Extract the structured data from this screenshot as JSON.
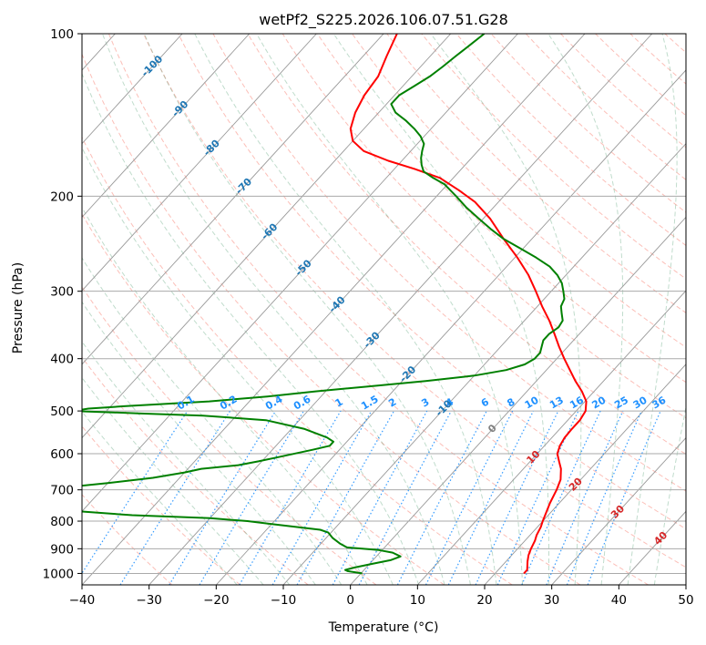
{
  "chart_data": {
    "type": "line",
    "subtype": "skew-t log-p",
    "title": "wetPf2_S225.2026.106.07.51.G28",
    "xlabel": "Temperature (°C)",
    "ylabel": "Pressure (hPa)",
    "xlim": [
      -40,
      50
    ],
    "ylim": [
      1050,
      100
    ],
    "y_scale": "log",
    "grid": true,
    "x_ticks": [
      -40,
      -30,
      -20,
      -10,
      0,
      10,
      20,
      30,
      40,
      50
    ],
    "y_ticks": [
      1000,
      900,
      800,
      700,
      600,
      500,
      400,
      300,
      200,
      100
    ],
    "x_tick_labels": [
      "−40",
      "−30",
      "−20",
      "−10",
      "0",
      "10",
      "20",
      "30",
      "40",
      "50"
    ],
    "y_tick_labels": [
      "1000",
      "900",
      "800",
      "700",
      "600",
      "500",
      "400",
      "300",
      "200",
      "100"
    ],
    "series": [
      {
        "role": "temperature",
        "color": "#ff0000",
        "points": [
          [
            1000,
            24.3
          ],
          [
            985,
            24.3
          ],
          [
            950,
            23.2
          ],
          [
            925,
            22.5
          ],
          [
            900,
            22.0
          ],
          [
            870,
            21.5
          ],
          [
            850,
            21.0
          ],
          [
            820,
            20.5
          ],
          [
            800,
            20.0
          ],
          [
            770,
            19.3
          ],
          [
            740,
            18.6
          ],
          [
            700,
            17.8
          ],
          [
            670,
            17.0
          ],
          [
            640,
            15.6
          ],
          [
            620,
            14.3
          ],
          [
            600,
            13.0
          ],
          [
            580,
            12.3
          ],
          [
            560,
            11.9
          ],
          [
            540,
            11.8
          ],
          [
            520,
            11.8
          ],
          [
            500,
            11.4
          ],
          [
            480,
            10.2
          ],
          [
            460,
            8.2
          ],
          [
            440,
            5.8
          ],
          [
            420,
            3.5
          ],
          [
            400,
            1.1
          ],
          [
            380,
            -1.3
          ],
          [
            360,
            -3.7
          ],
          [
            340,
            -6.3
          ],
          [
            320,
            -9.3
          ],
          [
            300,
            -12.3
          ],
          [
            280,
            -15.6
          ],
          [
            260,
            -19.6
          ],
          [
            240,
            -24.2
          ],
          [
            220,
            -29.0
          ],
          [
            205,
            -33.5
          ],
          [
            195,
            -37.5
          ],
          [
            185,
            -42.0
          ],
          [
            178,
            -47.0
          ],
          [
            172,
            -52.0
          ],
          [
            165,
            -57.0
          ],
          [
            158,
            -60.0
          ],
          [
            150,
            -62.0
          ],
          [
            140,
            -63.5
          ],
          [
            130,
            -64.5
          ],
          [
            120,
            -65.0
          ],
          [
            110,
            -66.5
          ],
          [
            100,
            -68.0
          ]
        ]
      },
      {
        "role": "dewpoint",
        "color": "#008000",
        "points": [
          [
            1000,
            0.2
          ],
          [
            990,
            -2.3
          ],
          [
            985,
            -2.8
          ],
          [
            975,
            -1.7
          ],
          [
            960,
            0.4
          ],
          [
            945,
            2.6
          ],
          [
            930,
            3.6
          ],
          [
            915,
            1.9
          ],
          [
            905,
            -0.5
          ],
          [
            895,
            -5.6
          ],
          [
            880,
            -7.2
          ],
          [
            860,
            -9.0
          ],
          [
            840,
            -10.4
          ],
          [
            830,
            -12.0
          ],
          [
            810,
            -20.0
          ],
          [
            800,
            -24.0
          ],
          [
            790,
            -30.0
          ],
          [
            780,
            -42.0
          ],
          [
            765,
            -52.0
          ],
          [
            750,
            -58.0
          ],
          [
            720,
            -60.5
          ],
          [
            710,
            -59.5
          ],
          [
            700,
            -57.0
          ],
          [
            690,
            -54.5
          ],
          [
            680,
            -50.0
          ],
          [
            665,
            -44.0
          ],
          [
            650,
            -40.0
          ],
          [
            640,
            -38.0
          ],
          [
            630,
            -33.0
          ],
          [
            620,
            -30.5
          ],
          [
            610,
            -28.4
          ],
          [
            590,
            -24.0
          ],
          [
            580,
            -22.0
          ],
          [
            570,
            -22.0
          ],
          [
            560,
            -23.5
          ],
          [
            540,
            -28.0
          ],
          [
            520,
            -35.0
          ],
          [
            510,
            -45.0
          ],
          [
            505,
            -55.0
          ],
          [
            500,
            -65.0
          ],
          [
            495,
            -63.0
          ],
          [
            490,
            -58.0
          ],
          [
            485,
            -52.0
          ],
          [
            480,
            -46.0
          ],
          [
            470,
            -38.0
          ],
          [
            460,
            -31.5
          ],
          [
            450,
            -24.0
          ],
          [
            440,
            -16.5
          ],
          [
            430,
            -10.0
          ],
          [
            420,
            -6.0
          ],
          [
            410,
            -4.0
          ],
          [
            400,
            -3.3
          ],
          [
            390,
            -3.3
          ],
          [
            380,
            -3.9
          ],
          [
            370,
            -4.5
          ],
          [
            360,
            -4.5
          ],
          [
            350,
            -4.0
          ],
          [
            340,
            -4.3
          ],
          [
            330,
            -5.4
          ],
          [
            320,
            -6.5
          ],
          [
            310,
            -7.0
          ],
          [
            300,
            -8.2
          ],
          [
            290,
            -9.5
          ],
          [
            280,
            -11.3
          ],
          [
            270,
            -13.6
          ],
          [
            260,
            -16.8
          ],
          [
            250,
            -20.4
          ],
          [
            240,
            -24.2
          ],
          [
            230,
            -27.5
          ],
          [
            220,
            -30.7
          ],
          [
            210,
            -34.0
          ],
          [
            200,
            -37.1
          ],
          [
            190,
            -40.5
          ],
          [
            185,
            -43.0
          ],
          [
            180,
            -45.3
          ],
          [
            175,
            -46.5
          ],
          [
            170,
            -47.5
          ],
          [
            165,
            -48.3
          ],
          [
            160,
            -49.0
          ],
          [
            155,
            -50.5
          ],
          [
            150,
            -52.5
          ],
          [
            145,
            -54.8
          ],
          [
            140,
            -57.5
          ],
          [
            135,
            -59.3
          ],
          [
            130,
            -59.3
          ],
          [
            125,
            -58.3
          ],
          [
            120,
            -57.3
          ],
          [
            115,
            -56.7
          ],
          [
            110,
            -56.2
          ],
          [
            105,
            -55.6
          ],
          [
            100,
            -55.0
          ]
        ]
      }
    ],
    "reference_lines": {
      "dry_adiabats": {
        "color": "#fa8072",
        "style": "dashed"
      },
      "moist_adiabats": {
        "color": "#2e8b57",
        "style": "dashed"
      },
      "mixing_ratio": {
        "color": "#1e90ff",
        "style": "dotted",
        "labels": [
          "0.1",
          "0.2",
          "0.4",
          "0.6",
          "1",
          "1.5",
          "2",
          "3",
          "4",
          "6",
          "8",
          "10",
          "13",
          "16",
          "20",
          "25",
          "30",
          "36"
        ],
        "values": [
          0.1,
          0.2,
          0.4,
          0.6,
          1,
          1.5,
          2,
          3,
          4,
          6,
          8,
          10,
          13,
          16,
          20,
          25,
          30,
          36
        ]
      },
      "isotherm_labels": {
        "color": "#1f77b4",
        "labels": [
          "-100",
          "-90",
          "-80",
          "-70",
          "-60",
          "-50",
          "-40",
          "-30",
          "-20",
          "-10"
        ],
        "values": [
          -100,
          -90,
          -80,
          -70,
          -60,
          -50,
          -40,
          -30,
          -20,
          -10
        ]
      },
      "zero_isotherm_label": {
        "label": "0",
        "color": "#808080"
      },
      "warm_isotherm_labels": {
        "color": "#d62728",
        "labels": [
          "10",
          "20",
          "30",
          "40"
        ],
        "values": [
          10,
          20,
          30,
          40
        ]
      }
    }
  }
}
